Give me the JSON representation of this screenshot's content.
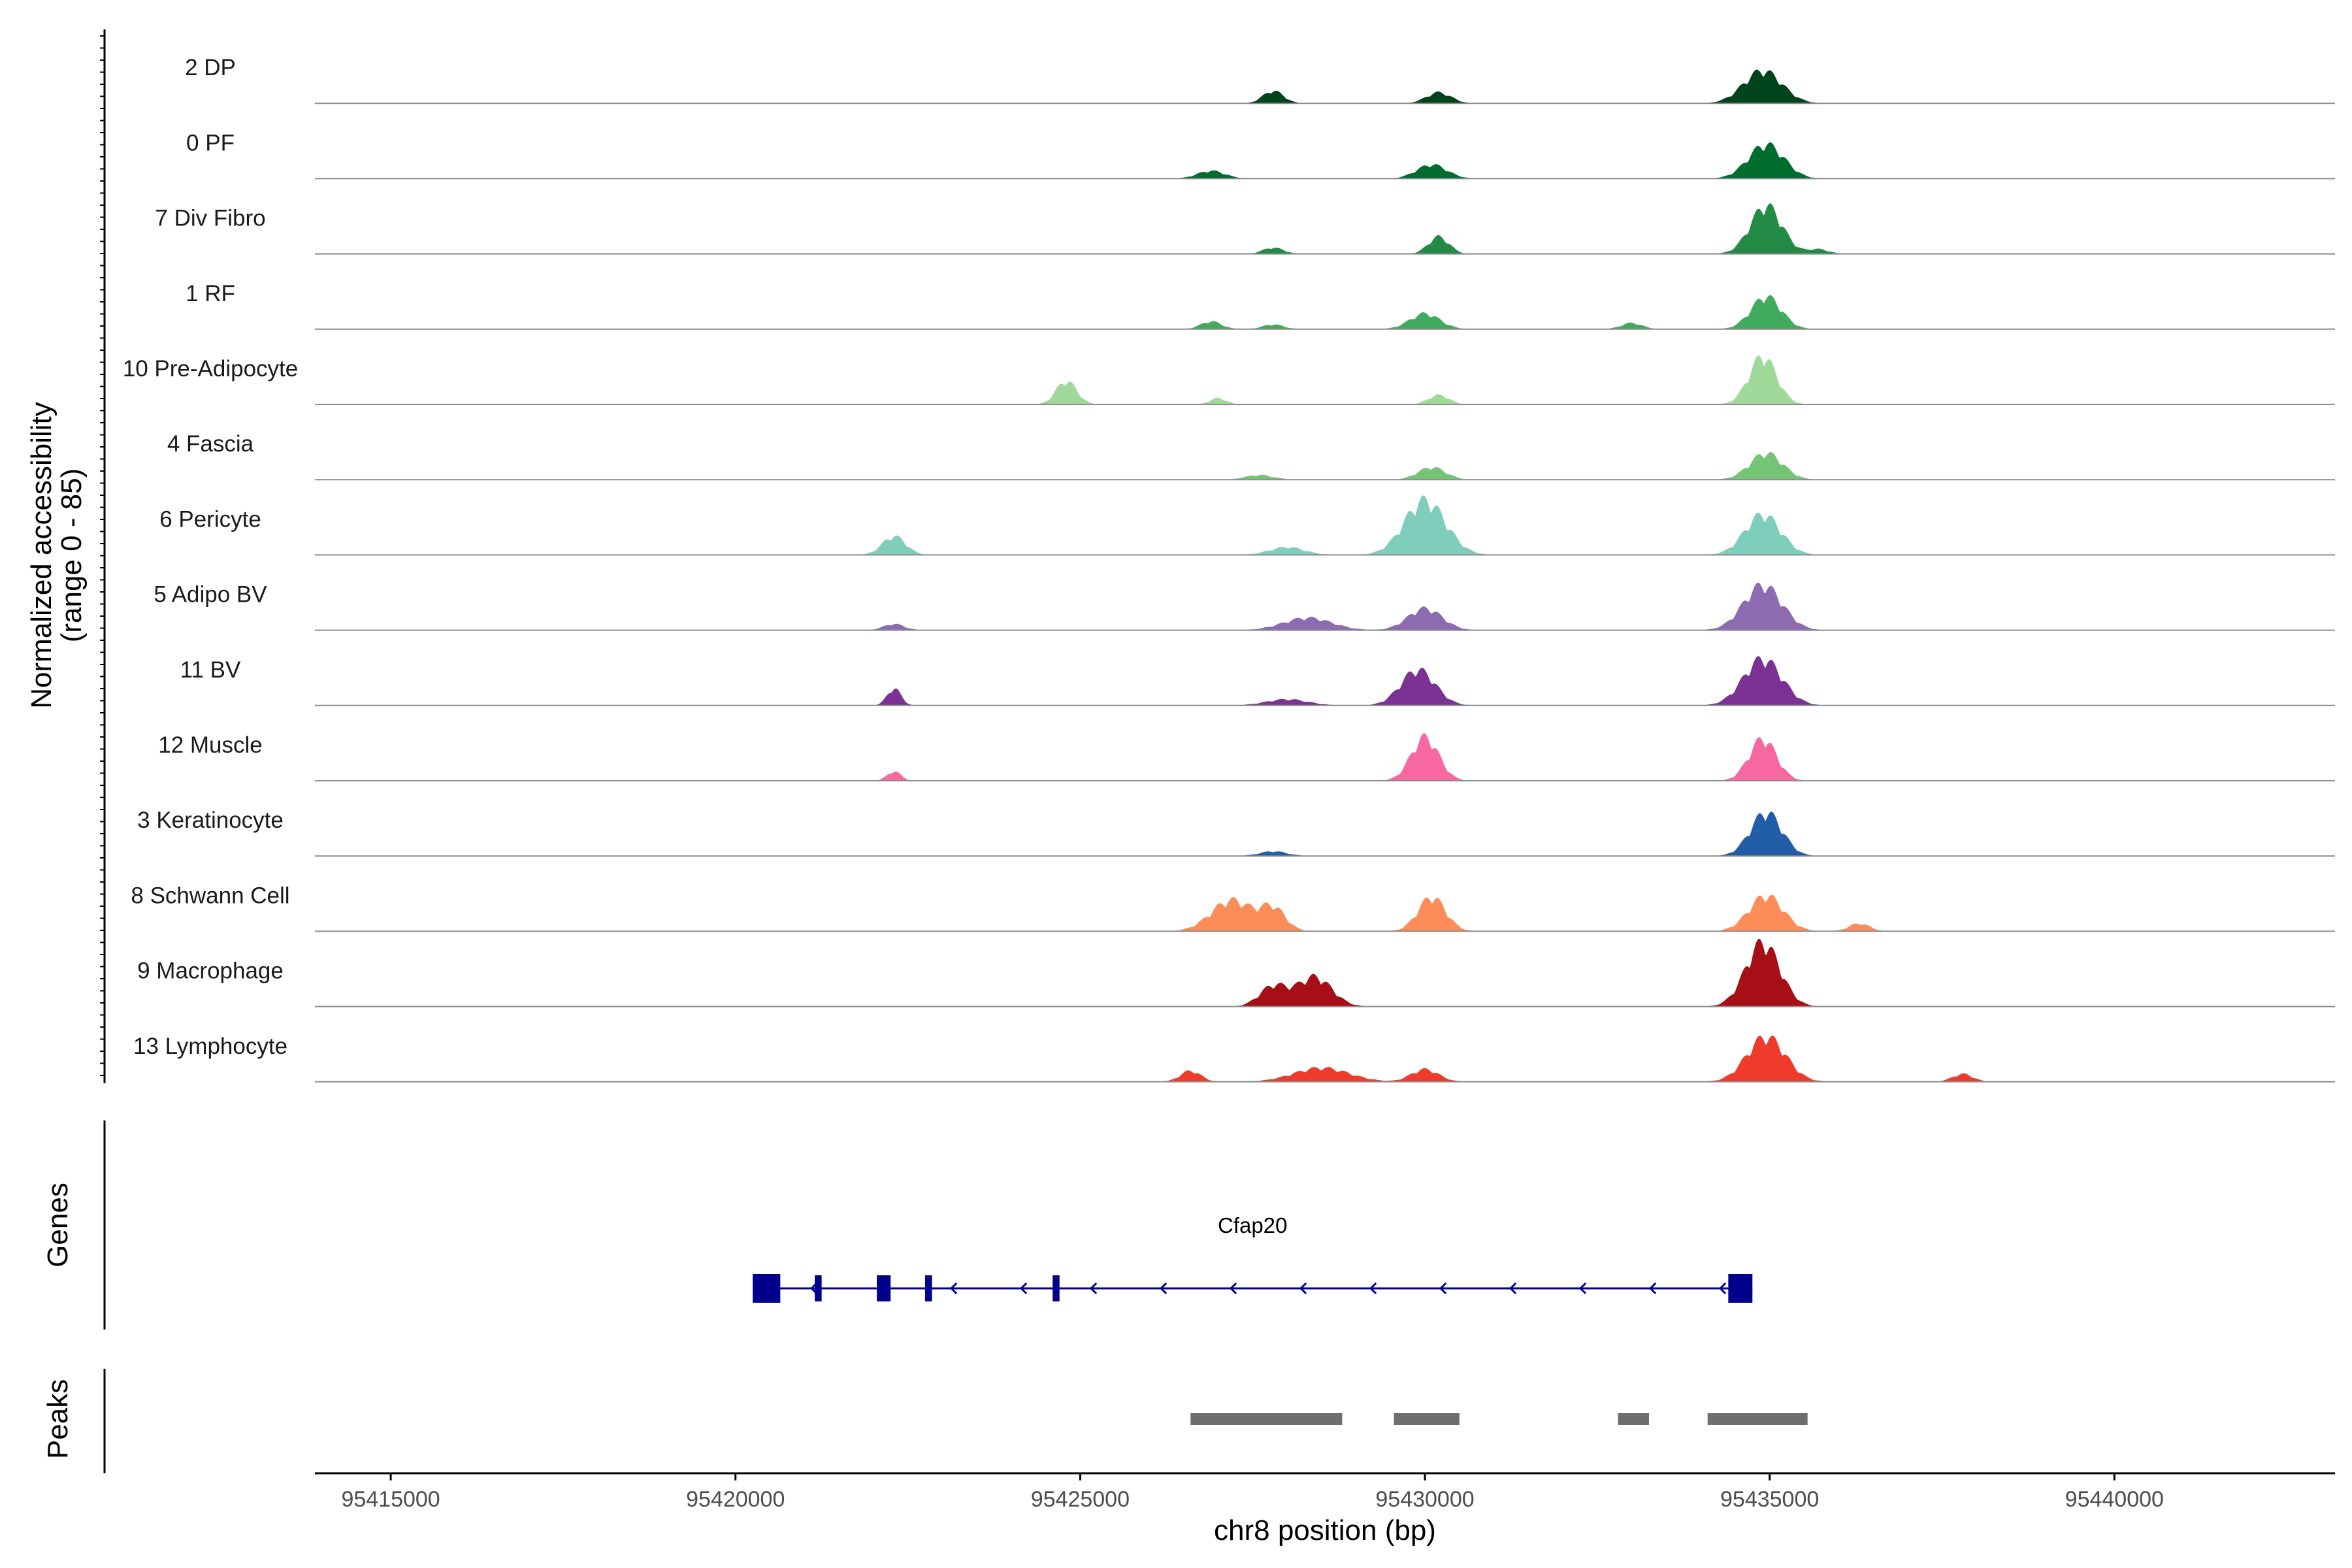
{
  "chart_data": {
    "type": "area",
    "chromosome": "chr8",
    "xlabel": "chr8 position (bp)",
    "xlim": [
      95413900,
      95443200
    ],
    "xticks": [
      95415000,
      95420000,
      95425000,
      95430000,
      95435000,
      95440000
    ],
    "ylabel_line1": "Normalized accessibility",
    "ylabel_line2": "(range 0 - 85)",
    "ylim": [
      0,
      85
    ],
    "genes_panel_label": "Genes",
    "peaks_panel_label": "Peaks",
    "series": [
      {
        "name": "2 DP",
        "color": "#00441b",
        "peaks": [
          [
            95427800,
            16,
            150
          ],
          [
            95430200,
            14,
            180
          ],
          [
            95434900,
            42,
            280
          ]
        ]
      },
      {
        "name": "0 PF",
        "color": "#006d2c",
        "peaks": [
          [
            95426900,
            10,
            200
          ],
          [
            95430100,
            18,
            220
          ],
          [
            95434950,
            44,
            260
          ]
        ]
      },
      {
        "name": "7 Div Fibro",
        "color": "#238b45",
        "peaks": [
          [
            95427800,
            8,
            150
          ],
          [
            95430200,
            22,
            150
          ],
          [
            95434950,
            62,
            230
          ],
          [
            95435700,
            6,
            150
          ]
        ]
      },
      {
        "name": "1 RF",
        "color": "#41ab5d",
        "peaks": [
          [
            95426900,
            10,
            150
          ],
          [
            95427800,
            6,
            150
          ],
          [
            95430000,
            20,
            220
          ],
          [
            95433000,
            8,
            150
          ],
          [
            95434950,
            42,
            220
          ]
        ]
      },
      {
        "name": "10 Pre-Adipocyte",
        "color": "#a1d99b",
        "peaks": [
          [
            95424800,
            30,
            150
          ],
          [
            95427000,
            8,
            120
          ],
          [
            95430200,
            12,
            150
          ],
          [
            95434900,
            62,
            200
          ]
        ]
      },
      {
        "name": "4 Fascia",
        "color": "#74c476",
        "peaks": [
          [
            95427600,
            6,
            200
          ],
          [
            95430100,
            16,
            200
          ],
          [
            95434950,
            34,
            240
          ]
        ]
      },
      {
        "name": "6 Pericyte",
        "color": "#7fcdbb",
        "peaks": [
          [
            95422300,
            24,
            170
          ],
          [
            95428000,
            10,
            250
          ],
          [
            95430000,
            70,
            300
          ],
          [
            95434900,
            52,
            260
          ]
        ]
      },
      {
        "name": "5 Adipo BV",
        "color": "#8c6bb1",
        "peaks": [
          [
            95422300,
            8,
            150
          ],
          [
            95428300,
            16,
            350
          ],
          [
            95430000,
            28,
            250
          ],
          [
            95434900,
            58,
            280
          ]
        ]
      },
      {
        "name": "11 BV",
        "color": "#7b3294",
        "peaks": [
          [
            95422300,
            22,
            100
          ],
          [
            95428000,
            8,
            300
          ],
          [
            95429900,
            46,
            250
          ],
          [
            95434900,
            60,
            280
          ]
        ]
      },
      {
        "name": "12 Muscle",
        "color": "#f768a1",
        "peaks": [
          [
            95422300,
            12,
            100
          ],
          [
            95430000,
            56,
            200
          ],
          [
            95434900,
            54,
            200
          ]
        ]
      },
      {
        "name": "3 Keratinocyte",
        "color": "#225ea8",
        "peaks": [
          [
            95427800,
            6,
            200
          ],
          [
            95434950,
            56,
            230
          ]
        ]
      },
      {
        "name": "8 Schwann Cell",
        "color": "#fc8d59",
        "peaks": [
          [
            95427200,
            40,
            300
          ],
          [
            95427800,
            28,
            180
          ],
          [
            95430100,
            44,
            200
          ],
          [
            95434950,
            46,
            250
          ],
          [
            95436300,
            10,
            150
          ]
        ]
      },
      {
        "name": "9 Macrophage",
        "color": "#a50f15",
        "peaks": [
          [
            95427800,
            26,
            200
          ],
          [
            95428400,
            38,
            250
          ],
          [
            95434900,
            82,
            250
          ]
        ]
      },
      {
        "name": "13 Lymphocyte",
        "color": "#ef3b2c",
        "peaks": [
          [
            95426600,
            14,
            150
          ],
          [
            95428500,
            18,
            400
          ],
          [
            95430000,
            16,
            200
          ],
          [
            95434950,
            58,
            280
          ],
          [
            95437800,
            10,
            150
          ]
        ]
      }
    ],
    "genes": [
      {
        "name": "Cfap20",
        "strand": "-",
        "start": 95420250,
        "end": 95434750,
        "exons": [
          [
            95420250,
            95420650
          ],
          [
            95421150,
            95421250
          ],
          [
            95422050,
            95422250
          ],
          [
            95422750,
            95422850
          ],
          [
            95424600,
            95424700
          ],
          [
            95434400,
            95434750
          ]
        ]
      }
    ],
    "peak_regions": [
      [
        95426600,
        95428800
      ],
      [
        95429550,
        95430500
      ],
      [
        95432800,
        95433250
      ],
      [
        95434100,
        95435550
      ]
    ]
  }
}
